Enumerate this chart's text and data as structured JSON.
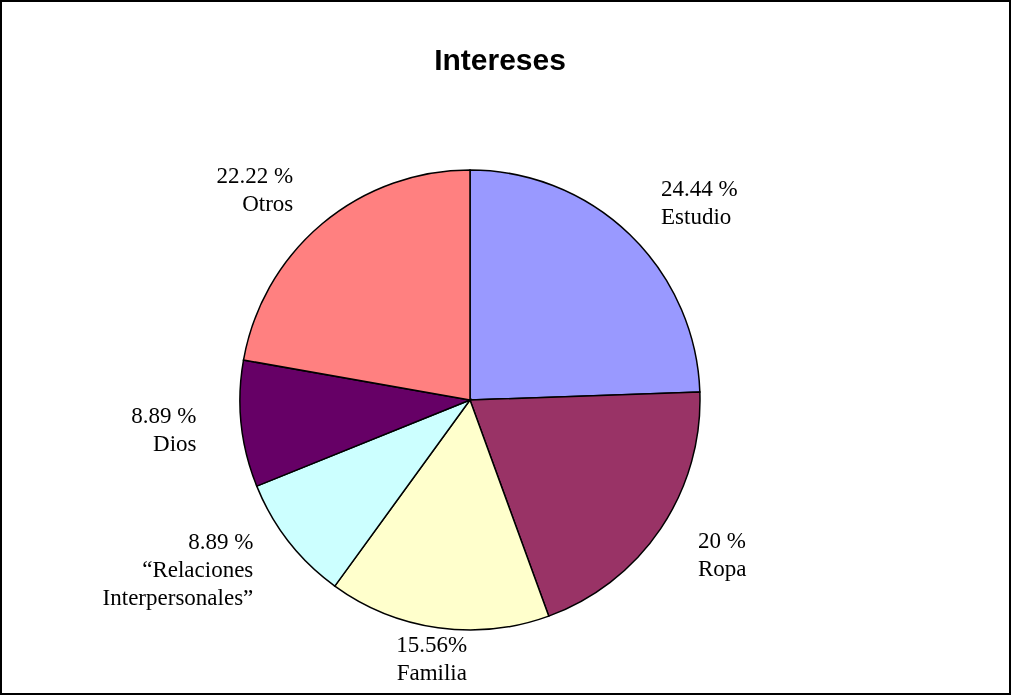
{
  "chart_data": {
    "type": "pie",
    "title": "Intereses",
    "categories": [
      "Estudio",
      "Ropa",
      "Familia",
      "“Relaciones Interpersonales”",
      "Dios",
      "Otros"
    ],
    "values": [
      24.44,
      20,
      15.56,
      8.89,
      8.89,
      22.22
    ],
    "value_labels": [
      "24.44 %",
      "20 %",
      "15.56%",
      "8.89 %",
      "8.89 %",
      "22.22 %"
    ],
    "colors": [
      "#9999ff",
      "#993366",
      "#ffffcc",
      "#ccffff",
      "#660066",
      "#ff8080"
    ]
  }
}
